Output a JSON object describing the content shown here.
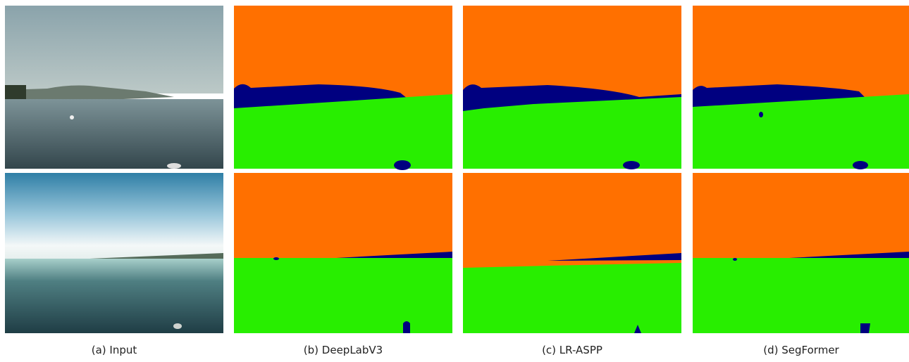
{
  "figure": {
    "panels": [
      {
        "caption": "(a) Input"
      },
      {
        "caption": "(b) DeepLabV3"
      },
      {
        "caption": "(c) LR-ASPP"
      },
      {
        "caption": "(d) SegFormer"
      }
    ]
  }
}
